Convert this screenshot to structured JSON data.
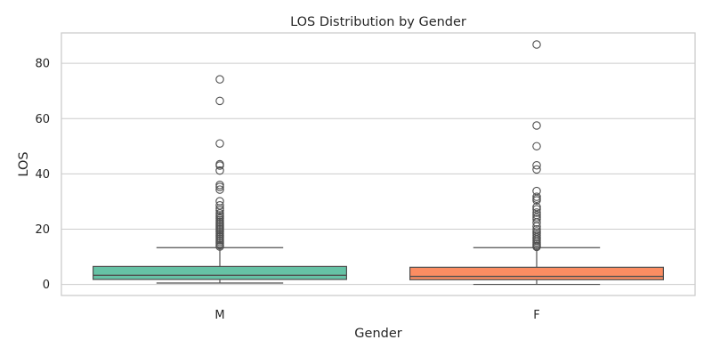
{
  "chart_data": {
    "type": "box",
    "title": "LOS Distribution by Gender",
    "xlabel": "Gender",
    "ylabel": "LOS",
    "categories": [
      "M",
      "F"
    ],
    "ylim": [
      -4,
      91
    ],
    "yticks": [
      0,
      20,
      40,
      60,
      80
    ],
    "grid": true,
    "colors": {
      "M": "#66c2a5",
      "F": "#fc8d62",
      "outline": "#505050",
      "grid": "#cccccc"
    },
    "series": [
      {
        "category": "M",
        "whisker_low": 0.5,
        "q1": 1.8,
        "median": 3.3,
        "q3": 6.5,
        "whisker_high": 13.3,
        "outliers": [
          74.2,
          66.4,
          51.0,
          43.5,
          43.0,
          41.2,
          36.0,
          35.3,
          34.3,
          30.1,
          28.6,
          27.5,
          26.8,
          25.7,
          25.0,
          24.4,
          23.8,
          23.2,
          22.6,
          22.0,
          21.4,
          20.8,
          20.2,
          19.6,
          19.0,
          18.4,
          17.8,
          17.2,
          16.6,
          16.0,
          15.4,
          14.8,
          14.2,
          13.7
        ]
      },
      {
        "category": "F",
        "whisker_low": 0.0,
        "q1": 1.7,
        "median": 2.9,
        "q3": 6.2,
        "whisker_high": 13.3,
        "outliers": [
          86.8,
          57.5,
          50.0,
          43.1,
          41.6,
          33.8,
          31.7,
          31.0,
          30.4,
          28.0,
          27.2,
          26.0,
          25.1,
          24.3,
          23.6,
          22.4,
          21.0,
          19.9,
          19.2,
          18.5,
          17.8,
          17.1,
          16.4,
          15.8,
          15.2,
          14.6,
          14.0,
          13.6
        ]
      }
    ]
  }
}
